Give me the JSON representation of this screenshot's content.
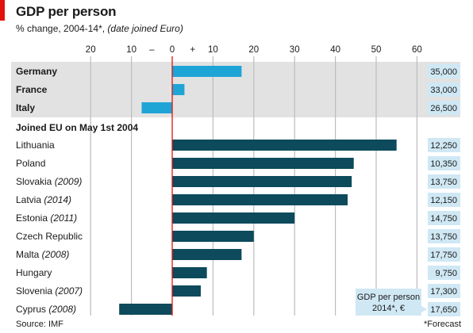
{
  "header": {
    "title": "GDP per person",
    "subtitle_main": "% change, 2004-14*, ",
    "subtitle_note": "(date joined Euro)"
  },
  "footer": {
    "source": "Source: IMF",
    "footnote": "*Forecast"
  },
  "colors": {
    "red_tag": "#e3120b",
    "top_bar": "#1fa4d6",
    "bottom_bar": "#0c4a5c",
    "top_band": "#e2e2e2",
    "value_box": "#cfe8f4",
    "zero_line": "#e3120b",
    "grid": "#bdbdbd"
  },
  "chart_data": {
    "type": "bar",
    "orientation": "horizontal",
    "xlim": [
      -20,
      60
    ],
    "tick_labels": [
      "20",
      "10",
      "–",
      "0",
      "+",
      "10",
      "20",
      "30",
      "40",
      "50",
      "60"
    ],
    "group_header": "Joined EU on May 1st 2004",
    "value_column_label": "GDP per person 2014*, €",
    "rows": [
      {
        "label": "Germany",
        "year": "",
        "change": 17,
        "gdp": "35,000",
        "group": "top"
      },
      {
        "label": "France",
        "year": "",
        "change": 3,
        "gdp": "33,000",
        "group": "top"
      },
      {
        "label": "Italy",
        "year": "",
        "change": -7.5,
        "gdp": "26,500",
        "group": "top"
      },
      {
        "label": "Lithuania",
        "year": "",
        "change": 55,
        "gdp": "12,250",
        "group": "eu2004"
      },
      {
        "label": "Poland",
        "year": "",
        "change": 44.5,
        "gdp": "10,350",
        "group": "eu2004"
      },
      {
        "label": "Slovakia",
        "year": "(2009)",
        "change": 44,
        "gdp": "13,750",
        "group": "eu2004"
      },
      {
        "label": "Latvia",
        "year": "(2014)",
        "change": 43,
        "gdp": "12,150",
        "group": "eu2004"
      },
      {
        "label": "Estonia",
        "year": "(2011)",
        "change": 30,
        "gdp": "14,750",
        "group": "eu2004"
      },
      {
        "label": "Czech Republic",
        "year": "",
        "change": 20,
        "gdp": "13,750",
        "group": "eu2004"
      },
      {
        "label": "Malta",
        "year": "(2008)",
        "change": 17,
        "gdp": "17,750",
        "group": "eu2004"
      },
      {
        "label": "Hungary",
        "year": "",
        "change": 8.5,
        "gdp": "9,750",
        "group": "eu2004"
      },
      {
        "label": "Slovenia",
        "year": "(2007)",
        "change": 7,
        "gdp": "17,300",
        "group": "eu2004"
      },
      {
        "label": "Cyprus",
        "year": "(2008)",
        "change": -13,
        "gdp": "17,650",
        "group": "eu2004"
      }
    ]
  }
}
